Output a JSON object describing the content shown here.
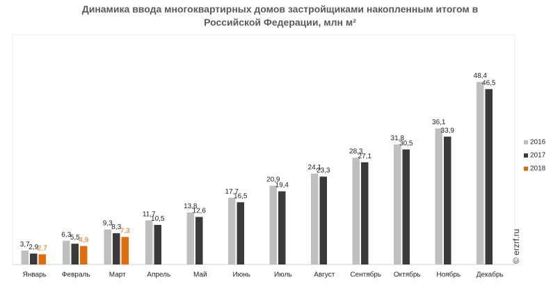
{
  "chart_data": {
    "type": "bar",
    "title": "Динамика ввода многоквартирных домов застройщиками накопленным итогом в Российской Федерации, млн м²",
    "categories": [
      "Январь",
      "Февраль",
      "Март",
      "Апрель",
      "Май",
      "Июнь",
      "Июль",
      "Август",
      "Сентябрь",
      "Октябрь",
      "Ноябрь",
      "Декабрь"
    ],
    "series": [
      {
        "name": "2016",
        "color": "#bfbfbf",
        "values": [
          3.7,
          6.3,
          9.3,
          11.7,
          13.8,
          17.7,
          20.9,
          24.1,
          28.3,
          31.8,
          36.1,
          48.4
        ],
        "value_labels": [
          "3,7",
          "6,3",
          "9,3",
          "11,7",
          "13,8",
          "17,7",
          "20,9",
          "24,1",
          "28,3",
          "31,8",
          "36,1",
          "48,4"
        ]
      },
      {
        "name": "2017",
        "color": "#3a3a3a",
        "values": [
          2.9,
          5.5,
          8.3,
          10.5,
          12.6,
          16.5,
          19.4,
          23.3,
          27.1,
          30.5,
          33.9,
          46.5
        ],
        "value_labels": [
          "2,9",
          "5,5",
          "8,3",
          "10,5",
          "12,6",
          "16,5",
          "19,4",
          "23,3",
          "27,1",
          "30,5",
          "33,9",
          "46,5"
        ]
      },
      {
        "name": "2018",
        "color": "#e36c0a",
        "values": [
          2.7,
          4.9,
          7.3,
          null,
          null,
          null,
          null,
          null,
          null,
          null,
          null,
          null
        ],
        "value_labels": [
          "2,7",
          "4,9",
          "7,3",
          null,
          null,
          null,
          null,
          null,
          null,
          null,
          null,
          null
        ]
      }
    ],
    "ylim": [
      0,
      60
    ],
    "watermark": "© erzrf.ru"
  }
}
